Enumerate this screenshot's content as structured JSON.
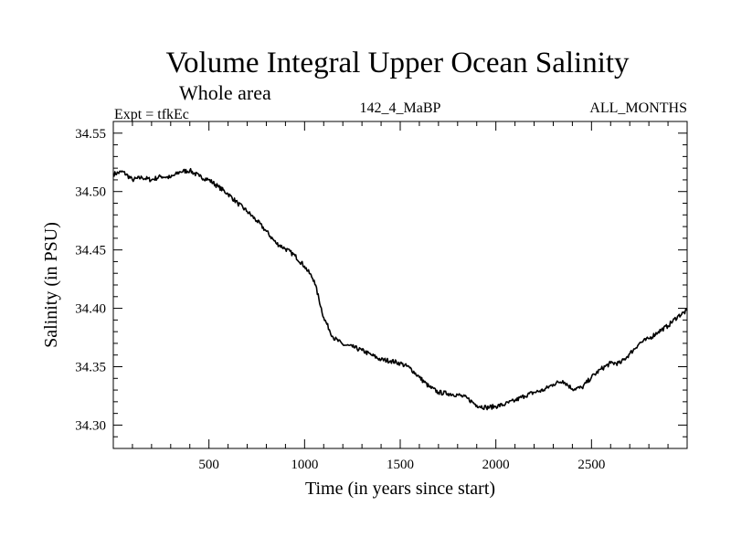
{
  "chart_data": {
    "type": "line",
    "title": "Volume Integral Upper Ocean Salinity",
    "subtitle": "Whole area",
    "left_label": "Expt = tfkEc",
    "center_label": "142_4_MaBP",
    "right_label": "ALL_MONTHS",
    "xlabel": "Time (in years since start)",
    "ylabel": "Salinity (in PSU)",
    "xlim": [
      0,
      3000
    ],
    "ylim": [
      34.28,
      34.56
    ],
    "x_ticks": [
      500,
      1000,
      1500,
      2000,
      2500
    ],
    "x_tick_labels": [
      "500",
      "1000",
      "1500",
      "2000",
      "2500"
    ],
    "y_ticks": [
      34.3,
      34.35,
      34.4,
      34.45,
      34.5,
      34.55
    ],
    "y_tick_labels": [
      "34.30",
      "34.35",
      "34.40",
      "34.45",
      "34.50",
      "34.55"
    ],
    "grid": false,
    "line_color": "#000000",
    "series": [
      {
        "x": [
          0,
          50,
          100,
          150,
          200,
          250,
          300,
          350,
          400,
          450,
          500,
          550,
          600,
          650,
          700,
          750,
          800,
          850,
          900,
          950,
          1000,
          1050,
          1100,
          1150,
          1200,
          1250,
          1300,
          1350,
          1400,
          1450,
          1500,
          1550,
          1600,
          1650,
          1700,
          1750,
          1800,
          1850,
          1900,
          1950,
          2000,
          2050,
          2100,
          2150,
          2200,
          2250,
          2300,
          2350,
          2400,
          2450,
          2500,
          2550,
          2600,
          2650,
          2700,
          2750,
          2800,
          2850,
          2900,
          2950,
          3000
        ],
        "y": [
          34.515,
          34.517,
          34.51,
          34.512,
          34.51,
          34.513,
          34.512,
          34.517,
          34.518,
          34.513,
          34.51,
          34.504,
          34.498,
          34.49,
          34.483,
          34.475,
          34.466,
          34.456,
          34.451,
          34.445,
          34.436,
          34.424,
          34.392,
          34.375,
          34.369,
          34.367,
          34.364,
          34.36,
          34.356,
          34.355,
          34.353,
          34.349,
          34.341,
          34.333,
          34.328,
          34.327,
          34.326,
          34.323,
          34.317,
          34.315,
          34.316,
          34.318,
          34.321,
          34.325,
          34.328,
          34.33,
          34.335,
          34.338,
          34.331,
          34.332,
          34.341,
          34.348,
          34.353,
          34.353,
          34.361,
          34.37,
          34.374,
          34.38,
          34.385,
          34.393,
          34.398
        ]
      }
    ]
  }
}
